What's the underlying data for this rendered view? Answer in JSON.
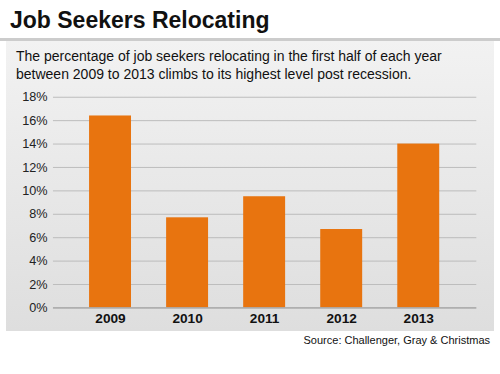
{
  "chart_data": {
    "type": "bar",
    "title": "Job Seekers Relocating",
    "subtitle": "The percentage of job seekers relocating in the first half of each year between 2009 to 2013 climbs to its highest level post recession.",
    "source": "Source: Challenger, Gray & Christmas",
    "categories": [
      "2009",
      "2010",
      "2011",
      "2012",
      "2013"
    ],
    "values": [
      16.4,
      7.7,
      9.5,
      6.7,
      14.0
    ],
    "color": "#e8740f",
    "ylim": [
      0,
      18
    ],
    "yticks": [
      {
        "value": 0,
        "label": "0%"
      },
      {
        "value": 2,
        "label": "2%"
      },
      {
        "value": 4,
        "label": "4%"
      },
      {
        "value": 6,
        "label": "6%"
      },
      {
        "value": 8,
        "label": "8%"
      },
      {
        "value": 10,
        "label": "10%"
      },
      {
        "value": 12,
        "label": "12%"
      },
      {
        "value": 14,
        "label": "14%"
      },
      {
        "value": 16,
        "label": "16%"
      },
      {
        "value": 18,
        "label": "18%"
      }
    ],
    "grid": true
  }
}
